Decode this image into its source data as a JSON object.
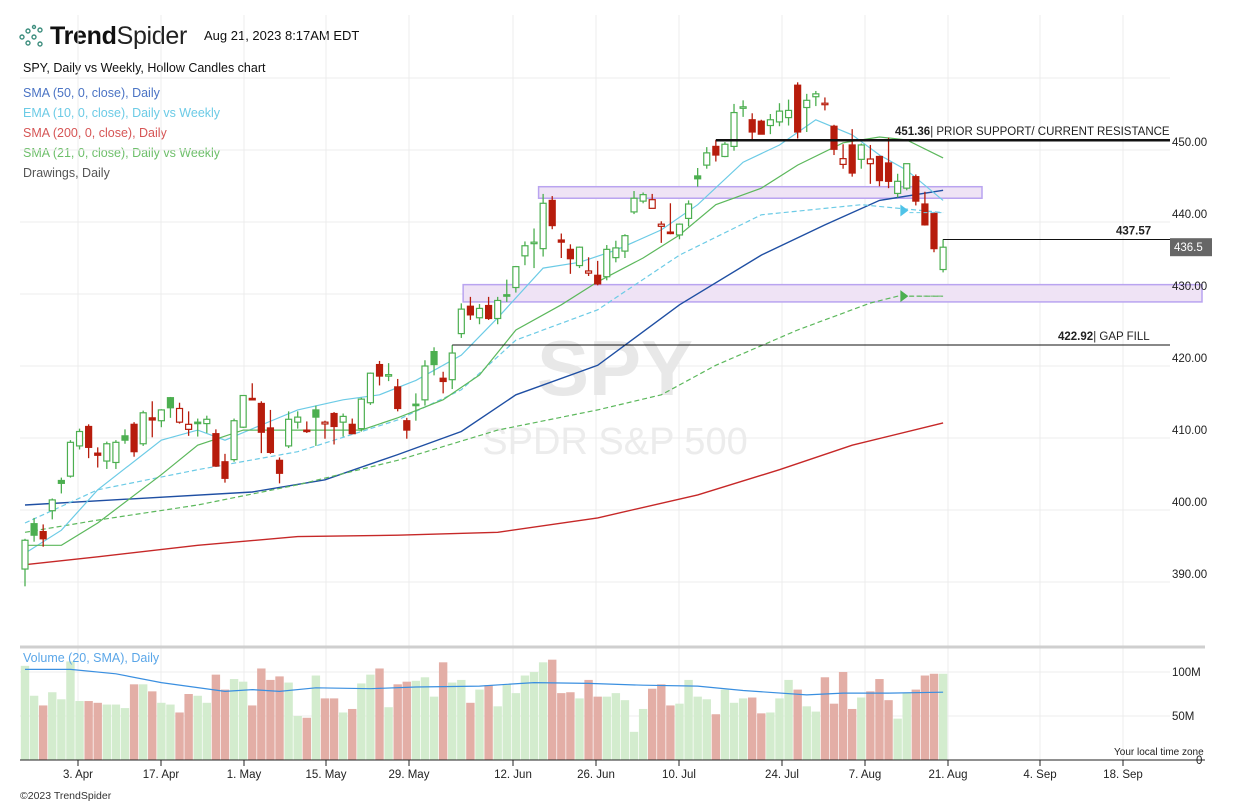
{
  "header": {
    "brand_bold": "Trend",
    "brand_light": "Spider",
    "timestamp": "Aug 21, 2023 8:17AM EDT",
    "subtitle": "SPY, Daily vs Weekly, Hollow Candles chart"
  },
  "legend": [
    "SMA (50, 0, close), Daily",
    "EMA (10, 0, close), Daily vs Weekly",
    "SMA (200, 0, close), Daily",
    "SMA (21, 0, close), Daily vs Weekly",
    "Drawings, Daily"
  ],
  "watermark": {
    "ticker": "SPY",
    "name": "SPDR S&P 500"
  },
  "volume_panel": {
    "title": "Volume (20, SMA), Daily",
    "timezone_note": "Your local time zone"
  },
  "footer": {
    "copyright": "©2023 TrendSpider"
  },
  "colors": {
    "up": "#4caf50",
    "down": "#b71c0c",
    "vol_up": "#d3ecce",
    "vol_down": "#e3aea6",
    "sma50": "#1f4fa3",
    "ema10": "#6ccbe6",
    "sma200": "#c62828",
    "sma21": "#5cb85c",
    "zone": "#b9a4f0",
    "vol_sma": "#3a8fe0"
  },
  "chart_data": {
    "type": "candlestick",
    "ticker": "SPY",
    "title": "SPY, Daily vs Weekly, Hollow Candles chart",
    "ylim": [
      383,
      462
    ],
    "y_ticks": [
      "450.00",
      "440.00",
      "430.00",
      "420.00",
      "410.00",
      "400.00",
      "390.00"
    ],
    "y_tick_values": [
      450,
      440,
      430,
      420,
      410,
      400,
      390
    ],
    "x_ticks": [
      "3. Apr",
      "17. Apr",
      "1. May",
      "15. May",
      "29. May",
      "12. Jun",
      "26. Jun",
      "10. Jul",
      "24. Jul",
      "7. Aug",
      "21. Aug",
      "4. Sep",
      "18. Sep"
    ],
    "last_price_tag": "436.5",
    "candles_ohlc": [
      [
        391.8,
        396,
        389.4,
        395.8
      ],
      [
        398.1,
        398.9,
        395.6,
        396.5
      ],
      [
        397,
        398,
        394.9,
        396.0
      ],
      [
        399.9,
        401.6,
        398.7,
        401.4
      ],
      [
        404.1,
        404.5,
        402.3,
        403.7
      ],
      [
        404.7,
        409.7,
        404.5,
        409.4
      ],
      [
        408.9,
        411.3,
        408.4,
        410.9
      ],
      [
        411.6,
        411.9,
        407.2,
        408.7
      ],
      [
        407.9,
        408.7,
        405.9,
        407.6
      ],
      [
        406.8,
        409.5,
        405.7,
        409.2
      ],
      [
        406.6,
        409.7,
        405.7,
        409.4
      ],
      [
        410.3,
        411.2,
        409.2,
        409.7
      ],
      [
        411.9,
        412.2,
        407.4,
        408.1
      ],
      [
        409.2,
        413.8,
        408.9,
        413.5
      ],
      [
        412.8,
        415.1,
        410.1,
        412.5
      ],
      [
        412.4,
        414.0,
        411.5,
        413.9
      ],
      [
        415.6,
        415.7,
        412.8,
        414.2
      ],
      [
        412.2,
        414.9,
        412.0,
        414.1
      ],
      [
        411.2,
        413.7,
        410.3,
        411.9
      ],
      [
        412.2,
        412.7,
        410.2,
        412.2
      ],
      [
        412.0,
        413.1,
        410.7,
        412.6
      ],
      [
        410.6,
        411.2,
        406.0,
        406.1
      ],
      [
        406.7,
        407.8,
        403.8,
        404.4
      ],
      [
        407.0,
        412.7,
        406.7,
        412.4
      ],
      [
        411.5,
        415.9,
        411.4,
        415.9
      ],
      [
        415.5,
        417.6,
        415.3,
        415.5
      ],
      [
        414.8,
        415.1,
        407.9,
        410.8
      ],
      [
        411.4,
        413.9,
        407.8,
        408.0
      ],
      [
        406.9,
        407.3,
        403.7,
        405.1
      ],
      [
        408.9,
        413.7,
        408.6,
        412.6
      ],
      [
        412.2,
        413.7,
        411.3,
        412.9
      ],
      [
        411.1,
        412.3,
        410.7,
        411.0
      ],
      [
        413.9,
        414.5,
        408.9,
        412.9
      ],
      [
        411.95,
        412.4,
        409.9,
        412.2
      ],
      [
        413.4,
        413.6,
        409.1,
        411.6
      ],
      [
        412.2,
        413.4,
        410.2,
        413.0
      ],
      [
        411.9,
        412.7,
        410.6,
        410.6
      ],
      [
        411.3,
        415.6,
        410.9,
        415.4
      ],
      [
        414.9,
        419.1,
        414.6,
        419.0
      ],
      [
        420.2,
        420.7,
        417.3,
        418.6
      ],
      [
        418.6,
        420.4,
        417.9,
        418.8
      ],
      [
        417.1,
        418.2,
        413.7,
        414.1
      ],
      [
        412.4,
        412.8,
        409.9,
        411.1
      ],
      [
        414.7,
        416.2,
        412.4,
        414.7
      ],
      [
        415.3,
        420.8,
        414.5,
        420.0
      ],
      [
        422.0,
        422.6,
        418.7,
        420.2
      ],
      [
        418.3,
        419.2,
        416.2,
        417.85
      ],
      [
        418.1,
        422.9,
        416.8,
        421.8
      ],
      [
        424.5,
        428.7,
        423.9,
        427.9
      ],
      [
        428.3,
        429.6,
        426.4,
        427.1
      ],
      [
        426.7,
        428.6,
        425.8,
        428.0
      ],
      [
        428.4,
        429.6,
        426.4,
        426.6
      ],
      [
        426.6,
        429.6,
        425.8,
        429.1
      ],
      [
        429.9,
        432.0,
        428.9,
        429.9
      ],
      [
        430.9,
        433.9,
        430.2,
        433.8
      ],
      [
        435.3,
        437.3,
        434.0,
        436.7
      ],
      [
        437.0,
        439.1,
        433.6,
        437.2
      ],
      [
        436.3,
        443.9,
        435.2,
        442.6
      ],
      [
        443.0,
        443.6,
        439.0,
        439.5
      ],
      [
        437.5,
        438.4,
        435.0,
        437.2
      ],
      [
        436.2,
        436.9,
        432.8,
        434.9
      ],
      [
        433.95,
        436.6,
        433.6,
        436.5
      ],
      [
        432.9,
        435.1,
        432.5,
        433.2
      ],
      [
        432.6,
        434.6,
        431.2,
        431.4
      ],
      [
        432.4,
        436.8,
        431.9,
        436.2
      ],
      [
        435.05,
        437.4,
        434.4,
        436.4
      ],
      [
        435.96,
        438.3,
        435.0,
        438.1
      ],
      [
        441.4,
        444.3,
        441.1,
        443.3
      ],
      [
        442.9,
        444.1,
        442.6,
        443.8
      ],
      [
        441.9,
        443.9,
        441.9,
        443.1
      ],
      [
        439.4,
        440.1,
        437.1,
        439.7
      ],
      [
        438.6,
        442.6,
        438.3,
        438.55
      ],
      [
        438.2,
        439.8,
        437.6,
        439.7
      ],
      [
        440.5,
        443.0,
        439.4,
        442.5
      ],
      [
        446.4,
        447.5,
        444.9,
        446.0
      ],
      [
        447.9,
        450.4,
        447.4,
        449.6
      ],
      [
        450.5,
        451.4,
        448.4,
        449.3
      ],
      [
        449.1,
        451.1,
        449.0,
        450.8
      ],
      [
        450.5,
        456.4,
        449.9,
        455.2
      ],
      [
        455.9,
        456.9,
        454.6,
        456.0
      ],
      [
        454.2,
        455.1,
        451.4,
        452.5
      ],
      [
        454.0,
        454.2,
        452.2,
        452.2
      ],
      [
        453.4,
        455.0,
        452.2,
        454.2
      ],
      [
        453.9,
        456.5,
        453.3,
        455.4
      ],
      [
        454.5,
        457.0,
        453.4,
        455.5
      ],
      [
        459.0,
        459.4,
        451.6,
        452.5
      ],
      [
        455.9,
        457.8,
        452.5,
        456.9
      ],
      [
        457.4,
        458.2,
        456.1,
        457.8
      ],
      [
        456.3,
        457.3,
        455.5,
        456.5
      ],
      [
        453.3,
        453.5,
        449.3,
        450.1
      ],
      [
        448.0,
        450.8,
        447.4,
        448.8
      ],
      [
        450.7,
        452.9,
        446.3,
        446.8
      ],
      [
        448.7,
        450.9,
        447.4,
        450.7
      ],
      [
        448.1,
        450.7,
        445.3,
        448.75
      ],
      [
        449.1,
        449.2,
        444.96,
        445.75
      ],
      [
        448.2,
        451.7,
        444.7,
        445.65
      ],
      [
        443.97,
        446.7,
        443.4,
        445.65
      ],
      [
        444.7,
        448.1,
        444.4,
        448.1
      ],
      [
        446.3,
        446.6,
        442.3,
        442.9
      ],
      [
        442.5,
        444.2,
        439.5,
        439.6
      ],
      [
        441.2,
        441.4,
        435.8,
        436.3
      ],
      [
        433.4,
        437.6,
        433.0,
        436.5
      ]
    ],
    "volume_millions": [
      107,
      73,
      62,
      77,
      69,
      112,
      67,
      67,
      65,
      63,
      63,
      59,
      86,
      86,
      78,
      65,
      63,
      54,
      75,
      73,
      65,
      97,
      80,
      92,
      89,
      62,
      104,
      91,
      95,
      88,
      50,
      48,
      96,
      70,
      70,
      54,
      58,
      87,
      97,
      104,
      60,
      86,
      89,
      90,
      94,
      72,
      111,
      88,
      91,
      65,
      80,
      85,
      61,
      86,
      76,
      96,
      100,
      111,
      114,
      76,
      77,
      70,
      91,
      72,
      72,
      76,
      68,
      32,
      58,
      81,
      86,
      62,
      64,
      91,
      72,
      69,
      52,
      80,
      65,
      70,
      71,
      53,
      54,
      70,
      91,
      80,
      61,
      55,
      94,
      64,
      100,
      58,
      71,
      78,
      92,
      68,
      47,
      76,
      80,
      96,
      98,
      98
    ],
    "volume_ticks": [
      "100M",
      "50M",
      "0"
    ],
    "volume_tick_values": [
      100,
      50,
      0
    ],
    "volume_sma_20": [
      [
        0,
        103
      ],
      [
        5,
        103
      ],
      [
        10,
        98
      ],
      [
        15,
        88
      ],
      [
        22,
        78
      ],
      [
        25,
        80
      ],
      [
        28,
        78
      ],
      [
        32,
        82
      ],
      [
        38,
        81
      ],
      [
        43,
        83
      ],
      [
        50,
        84
      ],
      [
        56,
        88
      ],
      [
        62,
        87
      ],
      [
        68,
        85
      ],
      [
        74,
        84
      ],
      [
        79,
        79
      ],
      [
        86,
        74
      ],
      [
        90,
        76
      ],
      [
        95,
        76
      ],
      [
        101,
        77
      ]
    ],
    "series": [
      {
        "name": "SMA (50, 0, close), Daily",
        "key": "sma50",
        "style": "solid",
        "points": [
          [
            0,
            400.7
          ],
          [
            25,
            402.5
          ],
          [
            33,
            404.2
          ],
          [
            41,
            407.7
          ],
          [
            48,
            410.9
          ],
          [
            54,
            416
          ],
          [
            63,
            420.1
          ],
          [
            72,
            428.5
          ],
          [
            81,
            435.4
          ],
          [
            88,
            439.6
          ],
          [
            94,
            443
          ],
          [
            101,
            444.4
          ]
        ]
      },
      {
        "name": "SMA (200, 0, close), Daily",
        "key": "sma200",
        "style": "solid",
        "points": [
          [
            0,
            392.4
          ],
          [
            8,
            393.5
          ],
          [
            19,
            395.1
          ],
          [
            30,
            396.3
          ],
          [
            41,
            396.5
          ],
          [
            52,
            396.9
          ],
          [
            63,
            398.9
          ],
          [
            74,
            402.1
          ],
          [
            83,
            405.6
          ],
          [
            91,
            409
          ],
          [
            101,
            412.1
          ]
        ]
      },
      {
        "name": "EMA (10, 0, close), Weekly",
        "key": "ema10",
        "style": "dashed",
        "points": [
          [
            0,
            398.2
          ],
          [
            8,
            402.8
          ],
          [
            19,
            405.6
          ],
          [
            30,
            408.1
          ],
          [
            41,
            412.5
          ],
          [
            48,
            416.7
          ],
          [
            54,
            423.6
          ],
          [
            63,
            427.8
          ],
          [
            72,
            435.4
          ],
          [
            81,
            441
          ],
          [
            92,
            442.4
          ],
          [
            101,
            441.3
          ]
        ]
      },
      {
        "name": "SMA (21, 0, close), Weekly",
        "key": "sma21",
        "style": "dashed",
        "points": [
          [
            0,
            396.9
          ],
          [
            8,
            398.6
          ],
          [
            19,
            400.7
          ],
          [
            30,
            403.5
          ],
          [
            41,
            406.9
          ],
          [
            52,
            411.1
          ],
          [
            63,
            413.9
          ],
          [
            70,
            416
          ],
          [
            76,
            420.1
          ],
          [
            85,
            425
          ],
          [
            93,
            428.75
          ],
          [
            96,
            429.7
          ],
          [
            101,
            429.7
          ]
        ]
      },
      {
        "name": "EMA (10, 0, close), Daily",
        "key": "ema10",
        "style": "solid",
        "points": [
          [
            0,
            394
          ],
          [
            4,
            397.2
          ],
          [
            8,
            402.8
          ],
          [
            15,
            409.7
          ],
          [
            19,
            411.1
          ],
          [
            22,
            409.7
          ],
          [
            26,
            411.8
          ],
          [
            30,
            413.9
          ],
          [
            35,
            415.3
          ],
          [
            39,
            416
          ],
          [
            43,
            418
          ],
          [
            48,
            421.5
          ],
          [
            52,
            426.7
          ],
          [
            57,
            433.6
          ],
          [
            61,
            434.4
          ],
          [
            65,
            436.1
          ],
          [
            70,
            438.9
          ],
          [
            74,
            442.4
          ],
          [
            79,
            448.3
          ],
          [
            83,
            450.7
          ],
          [
            87,
            454.2
          ],
          [
            91,
            452.1
          ],
          [
            94,
            449.3
          ],
          [
            97,
            447.2
          ],
          [
            101,
            443
          ]
        ]
      },
      {
        "name": "SMA (21, 0, close), Daily",
        "key": "sma21",
        "style": "solid",
        "points": [
          [
            0,
            395.1
          ],
          [
            4,
            395.1
          ],
          [
            8,
            398.2
          ],
          [
            15,
            404.9
          ],
          [
            19,
            409
          ],
          [
            24,
            411.1
          ],
          [
            30,
            411.1
          ],
          [
            37,
            411.1
          ],
          [
            41,
            412.8
          ],
          [
            46,
            415.3
          ],
          [
            50,
            418.75
          ],
          [
            54,
            425
          ],
          [
            59,
            428.5
          ],
          [
            63,
            431.7
          ],
          [
            68,
            435
          ],
          [
            72,
            438.2
          ],
          [
            76,
            442.4
          ],
          [
            81,
            444.7
          ],
          [
            85,
            447.9
          ],
          [
            90,
            451
          ],
          [
            94,
            451.8
          ],
          [
            97,
            451.4
          ],
          [
            101,
            448.9
          ]
        ]
      }
    ],
    "drawings": {
      "levels": [
        {
          "price": 451.36,
          "label_value": "451.36",
          "label_text": "| PRIOR SUPPORT/ CURRENT RESISTANCE",
          "from_bar": 76
        },
        {
          "price": 437.57,
          "label_value": "437.57",
          "label_text": "",
          "from_bar": 101
        },
        {
          "price": 422.92,
          "label_value": "422.92",
          "label_text": "| GAP FILL",
          "from_bar": 47
        }
      ],
      "zones": [
        {
          "top": 444.9,
          "bottom": 443.3,
          "from_bar": 56.5
        },
        {
          "top": 431.3,
          "bottom": 428.9,
          "from_bar": 48.2
        }
      ]
    }
  }
}
